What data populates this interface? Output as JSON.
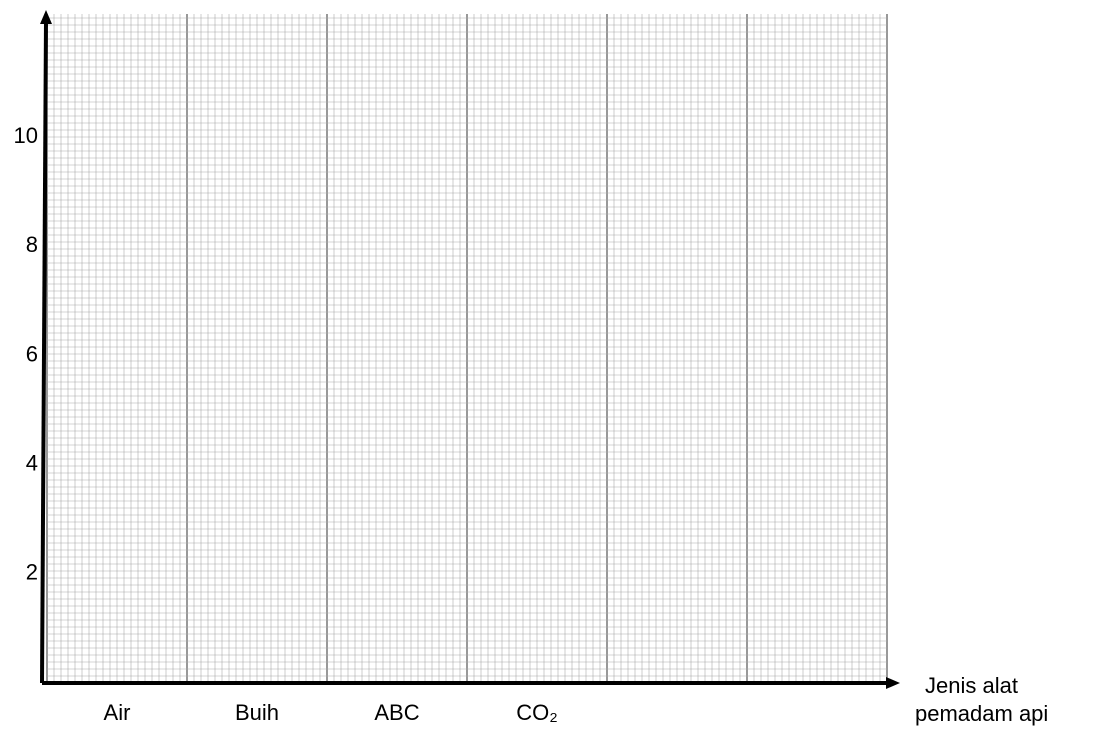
{
  "chart_data": {
    "type": "bar",
    "categories": [
      "Air",
      "Buih",
      "ABC",
      "CO₂"
    ],
    "x_label": [
      "Jenis alat",
      "pemadam api"
    ],
    "ylim": [
      0,
      12
    ],
    "yticks": [
      2,
      4,
      6,
      8,
      10
    ],
    "grid": false
  }
}
